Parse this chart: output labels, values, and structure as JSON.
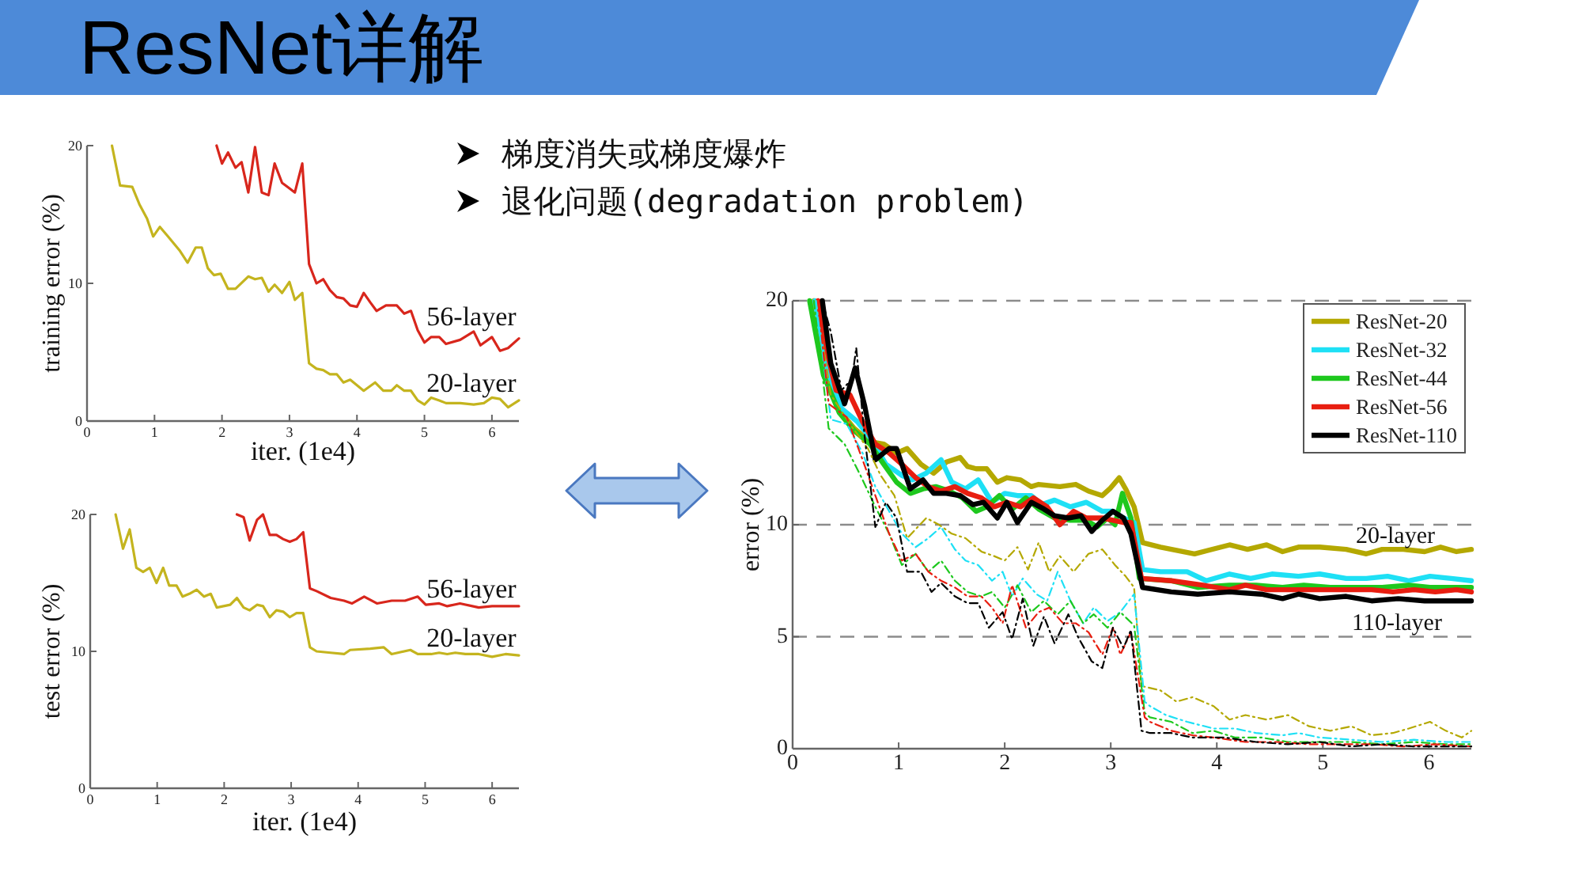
{
  "chart_data": [
    {
      "type": "other",
      "title": "ResNet详解",
      "annotations": [
        "梯度消失或梯度爆炸",
        "退化问题(degradation problem)"
      ]
    },
    {
      "type": "line",
      "xlabel": "iter. (1e4)",
      "ylabel": "training error (%)",
      "xlim": [
        0,
        6.4
      ],
      "ylim": [
        0,
        20
      ],
      "xticks": [
        0,
        1,
        2,
        3,
        4,
        5,
        6
      ],
      "yticks": [
        0,
        10,
        20
      ],
      "series": [
        {
          "color": "#c4b41e",
          "x": [
            0.37,
            0.49,
            0.67,
            0.78,
            0.89,
            0.98,
            1.08,
            1.2,
            1.37,
            1.49,
            1.61,
            1.7,
            1.79,
            1.88,
            1.98,
            2.09,
            2.2,
            2.39,
            2.49,
            2.59,
            2.69,
            2.78,
            2.89,
            3.0,
            3.08,
            3.19,
            3.29,
            3.4,
            3.5,
            3.6,
            3.7,
            3.8,
            3.9,
            4.0,
            4.1,
            4.27,
            4.39,
            4.51,
            4.59,
            4.7,
            4.8,
            4.9,
            5.0,
            5.1,
            5.22,
            5.32,
            5.53,
            5.73,
            5.88,
            6.0,
            6.12,
            6.24,
            6.4
          ],
          "values": [
            20,
            17.1,
            17.0,
            15.7,
            14.7,
            13.4,
            14.1,
            13.4,
            12.4,
            11.5,
            12.6,
            12.6,
            11.1,
            10.6,
            10.7,
            9.6,
            9.6,
            10.5,
            10.3,
            10.4,
            9.4,
            9.9,
            9.3,
            10.1,
            8.8,
            9.3,
            4.2,
            3.8,
            3.7,
            3.4,
            3.4,
            2.8,
            3.0,
            2.6,
            2.2,
            2.8,
            2.2,
            2.2,
            2.6,
            2.2,
            2.2,
            1.5,
            1.2,
            1.7,
            1.5,
            1.3,
            1.3,
            1.2,
            1.3,
            1.7,
            1.6,
            1.0,
            1.5
          ]
        },
        {
          "color": "#d8261c",
          "x": [
            1.92,
            2.0,
            2.09,
            2.2,
            2.29,
            2.39,
            2.49,
            2.59,
            2.69,
            2.78,
            2.89,
            3.0,
            3.08,
            3.19,
            3.29,
            3.4,
            3.5,
            3.6,
            3.7,
            3.8,
            3.9,
            4.0,
            4.1,
            4.2,
            4.29,
            4.43,
            4.59,
            4.7,
            4.8,
            4.9,
            5.0,
            5.1,
            5.22,
            5.32,
            5.53,
            5.73,
            5.83,
            6.0,
            6.12,
            6.24,
            6.4
          ],
          "values": [
            20,
            18.7,
            19.5,
            18.4,
            18.8,
            16.6,
            19.9,
            16.6,
            16.4,
            18.7,
            17.3,
            16.9,
            16.6,
            18.7,
            11.4,
            10.0,
            10.3,
            9.5,
            9.0,
            8.9,
            8.4,
            8.3,
            9.3,
            8.6,
            8.0,
            8.4,
            8.4,
            7.8,
            8.0,
            6.6,
            5.7,
            6.1,
            6.1,
            5.6,
            5.9,
            6.5,
            5.5,
            6.1,
            5.1,
            5.3,
            6.0
          ]
        }
      ],
      "annotations": [
        "56-layer",
        "20-layer"
      ]
    },
    {
      "type": "line",
      "xlabel": "iter. (1e4)",
      "ylabel": "test error (%)",
      "xlim": [
        0,
        6.4
      ],
      "ylim": [
        0,
        20
      ],
      "xticks": [
        0,
        1,
        2,
        3,
        4,
        5,
        6
      ],
      "yticks": [
        0,
        10,
        20
      ],
      "series": [
        {
          "color": "#c4b41e",
          "x": [
            0.38,
            0.49,
            0.59,
            0.69,
            0.79,
            0.89,
            0.99,
            1.09,
            1.18,
            1.29,
            1.38,
            1.48,
            1.59,
            1.7,
            1.8,
            1.89,
            1.99,
            2.09,
            2.19,
            2.29,
            2.38,
            2.49,
            2.58,
            2.68,
            2.78,
            2.88,
            2.98,
            3.08,
            3.18,
            3.28,
            3.38,
            3.59,
            3.79,
            3.88,
            4.18,
            4.38,
            4.5,
            4.78,
            4.89,
            5.09,
            5.21,
            5.33,
            5.45,
            5.6,
            5.8,
            6.0,
            6.2,
            6.4
          ],
          "values": [
            20,
            17.5,
            18.9,
            16.1,
            15.8,
            16.1,
            15.0,
            16.1,
            14.8,
            14.8,
            14.0,
            14.2,
            14.5,
            14.0,
            14.2,
            13.2,
            13.3,
            13.4,
            13.9,
            13.2,
            13.0,
            13.4,
            13.3,
            12.5,
            13.0,
            12.9,
            12.5,
            12.8,
            12.8,
            10.3,
            10.0,
            9.9,
            9.8,
            10.1,
            10.2,
            10.3,
            9.8,
            10.1,
            9.8,
            9.8,
            9.9,
            9.8,
            9.9,
            9.8,
            9.8,
            9.6,
            9.8,
            9.7
          ]
        },
        {
          "color": "#d8261c",
          "x": [
            2.19,
            2.29,
            2.38,
            2.49,
            2.58,
            2.68,
            2.78,
            2.88,
            2.98,
            3.08,
            3.18,
            3.28,
            3.38,
            3.59,
            3.79,
            3.91,
            4.09,
            4.28,
            4.5,
            4.7,
            4.89,
            5.01,
            5.21,
            5.33,
            5.52,
            5.8,
            6.0,
            6.4
          ],
          "values": [
            20,
            19.8,
            18.1,
            19.6,
            20,
            18.5,
            18.5,
            18.2,
            18.0,
            18.2,
            18.7,
            14.6,
            14.4,
            13.9,
            13.7,
            13.5,
            14.0,
            13.5,
            13.7,
            13.7,
            14.0,
            13.4,
            13.5,
            13.3,
            13.5,
            13.2,
            13.3,
            13.3
          ]
        }
      ],
      "annotations": [
        "56-layer",
        "20-layer"
      ]
    },
    {
      "type": "line",
      "ylabel": "error (%)",
      "xlim": [
        0,
        6.4
      ],
      "ylim": [
        0,
        20
      ],
      "xticks": [
        0,
        1,
        2,
        3,
        4,
        5,
        6
      ],
      "yticks": [
        0,
        5,
        10,
        20
      ],
      "grid": "y",
      "legend": "top right",
      "series": [
        {
          "name": "ResNet-20",
          "color": "#b4a800",
          "line_style": "solid",
          "x": [
            0.2,
            0.34,
            0.46,
            0.58,
            0.73,
            0.86,
            0.98,
            1.08,
            1.21,
            1.33,
            1.45,
            1.58,
            1.65,
            1.73,
            1.83,
            1.93,
            2.02,
            2.15,
            2.25,
            2.32,
            2.52,
            2.67,
            2.79,
            2.92,
            2.99,
            3.08,
            3.14,
            3.22,
            3.3,
            3.47,
            3.79,
            4.12,
            4.29,
            4.47,
            4.62,
            4.77,
            4.97,
            5.22,
            5.41,
            5.56,
            5.76,
            5.96,
            6.11,
            6.26,
            6.4
          ],
          "values": [
            20,
            16.2,
            15.0,
            14.3,
            13.7,
            13.6,
            13.2,
            13.4,
            12.7,
            12.3,
            12.8,
            13.0,
            12.6,
            12.5,
            12.5,
            11.9,
            12.1,
            12.0,
            11.7,
            11.8,
            11.7,
            11.8,
            11.5,
            11.3,
            11.6,
            12.1,
            11.6,
            10.8,
            9.2,
            9.0,
            8.7,
            9.1,
            8.9,
            9.1,
            8.8,
            9.0,
            9.0,
            8.9,
            8.7,
            8.9,
            8.9,
            8.8,
            9.0,
            8.8,
            8.9
          ]
        },
        {
          "name": "ResNet-32",
          "color": "#1ee0f5",
          "line_style": "solid",
          "x": [
            0.21,
            0.34,
            0.46,
            0.61,
            0.73,
            0.88,
            1.03,
            1.13,
            1.26,
            1.4,
            1.5,
            1.63,
            1.75,
            1.88,
            2.0,
            2.12,
            2.25,
            2.35,
            2.47,
            2.62,
            2.77,
            2.92,
            3.02,
            3.12,
            3.22,
            3.3,
            3.47,
            3.72,
            3.9,
            4.12,
            4.32,
            4.52,
            4.77,
            4.97,
            5.22,
            5.41,
            5.61,
            5.81,
            6.01,
            6.21,
            6.4
          ],
          "values": [
            20,
            16.7,
            15.2,
            14.6,
            13.9,
            12.7,
            12.2,
            12.0,
            12.3,
            12.9,
            11.9,
            11.6,
            12.0,
            11.0,
            11.4,
            11.3,
            11.3,
            10.9,
            11.1,
            10.8,
            11.0,
            10.6,
            10.6,
            10.3,
            10.1,
            8.0,
            7.9,
            7.9,
            7.5,
            7.8,
            7.6,
            7.8,
            7.7,
            7.8,
            7.6,
            7.6,
            7.7,
            7.5,
            7.7,
            7.6,
            7.5
          ]
        },
        {
          "name": "ResNet-44",
          "color": "#1ec81e",
          "line_style": "solid",
          "x": [
            0.16,
            0.29,
            0.44,
            0.58,
            0.73,
            0.86,
            0.98,
            1.11,
            1.23,
            1.35,
            1.48,
            1.6,
            1.73,
            1.83,
            1.95,
            2.07,
            2.2,
            2.32,
            2.47,
            2.62,
            2.77,
            2.87,
            2.97,
            3.04,
            3.11,
            3.19,
            3.27,
            3.57,
            3.82,
            4.12,
            4.37,
            4.62,
            4.82,
            5.07,
            5.32,
            5.56,
            5.81,
            6.01,
            6.21,
            6.4
          ],
          "values": [
            20,
            16.7,
            15.0,
            14.2,
            13.6,
            12.7,
            11.9,
            11.4,
            11.6,
            11.7,
            11.5,
            11.2,
            10.6,
            10.8,
            11.3,
            10.7,
            11.2,
            10.7,
            10.3,
            10.2,
            10.2,
            9.9,
            10.3,
            10.0,
            11.4,
            10.3,
            7.6,
            7.5,
            7.2,
            7.3,
            7.3,
            7.2,
            7.3,
            7.2,
            7.2,
            7.2,
            7.3,
            7.2,
            7.2,
            7.2
          ]
        },
        {
          "name": "ResNet-56",
          "color": "#e81e10",
          "line_style": "solid",
          "x": [
            0.24,
            0.34,
            0.41,
            0.54,
            0.66,
            0.78,
            0.91,
            1.03,
            1.16,
            1.28,
            1.4,
            1.53,
            1.65,
            1.78,
            1.9,
            2.02,
            2.15,
            2.27,
            2.4,
            2.52,
            2.65,
            2.77,
            2.92,
            3.02,
            3.12,
            3.19,
            3.29,
            3.57,
            3.87,
            4.12,
            4.27,
            4.47,
            4.72,
            4.97,
            5.22,
            5.46,
            5.66,
            5.86,
            6.06,
            6.26,
            6.4
          ],
          "values": [
            20,
            17.4,
            16.0,
            15.8,
            14.6,
            13.6,
            13.2,
            12.7,
            12.1,
            11.7,
            11.5,
            11.7,
            11.4,
            11.2,
            10.8,
            11.0,
            10.8,
            11.2,
            10.8,
            10.0,
            10.6,
            10.3,
            10.3,
            10.2,
            10.1,
            10.1,
            7.6,
            7.5,
            7.3,
            7.1,
            7.3,
            7.1,
            7.1,
            7.1,
            7.1,
            7.1,
            7.0,
            7.1,
            7.0,
            7.1,
            7.0
          ]
        },
        {
          "name": "ResNet-110",
          "color": "#000000",
          "line_style": "solid",
          "x": [
            0.28,
            0.36,
            0.49,
            0.59,
            0.68,
            0.78,
            0.91,
            0.98,
            1.11,
            1.23,
            1.33,
            1.45,
            1.58,
            1.7,
            1.8,
            1.93,
            2.02,
            2.12,
            2.25,
            2.37,
            2.47,
            2.6,
            2.72,
            2.82,
            2.92,
            3.02,
            3.12,
            3.19,
            3.3,
            3.57,
            3.82,
            4.12,
            4.42,
            4.62,
            4.77,
            4.97,
            5.22,
            5.46,
            5.71,
            5.96,
            6.21,
            6.4
          ],
          "values": [
            20,
            17.2,
            15.4,
            17.0,
            15.3,
            12.9,
            13.4,
            13.4,
            11.6,
            12.0,
            11.4,
            11.4,
            11.3,
            10.9,
            11.0,
            10.3,
            11.0,
            10.1,
            11.0,
            10.7,
            10.4,
            10.3,
            10.4,
            9.7,
            10.2,
            10.6,
            10.3,
            9.6,
            7.2,
            7.0,
            6.9,
            7.0,
            6.9,
            6.7,
            6.9,
            6.7,
            6.8,
            6.6,
            6.7,
            6.6,
            6.6,
            6.6
          ]
        },
        {
          "color": "#b4a800",
          "line_style": "dashed",
          "x": [
            0.22,
            0.36,
            0.54,
            0.71,
            0.83,
            0.96,
            1.08,
            1.26,
            1.38,
            1.5,
            1.63,
            1.78,
            1.9,
            2.0,
            2.12,
            2.22,
            2.32,
            2.42,
            2.52,
            2.65,
            2.79,
            2.92,
            3.04,
            3.14,
            3.22,
            3.29,
            3.47,
            3.62,
            3.77,
            3.97,
            4.12,
            4.27,
            4.47,
            4.67,
            4.87,
            5.07,
            5.27,
            5.46,
            5.66,
            5.81,
            6.01,
            6.16,
            6.31,
            6.4
          ],
          "values": [
            20,
            15.8,
            14.5,
            13.4,
            12.2,
            11.3,
            9.4,
            10.3,
            10.0,
            9.6,
            9.4,
            8.8,
            8.6,
            8.4,
            9.0,
            8.0,
            9.2,
            7.9,
            8.6,
            7.9,
            8.7,
            8.9,
            8.2,
            7.7,
            7.2,
            2.8,
            2.6,
            2.1,
            2.3,
            1.9,
            1.3,
            1.5,
            1.3,
            1.5,
            1.0,
            0.8,
            1.0,
            0.6,
            0.7,
            0.9,
            1.2,
            0.8,
            0.5,
            0.8
          ]
        },
        {
          "color": "#1ee0f5",
          "line_style": "dashed",
          "x": [
            0.22,
            0.36,
            0.51,
            0.66,
            0.78,
            0.91,
            1.03,
            1.16,
            1.28,
            1.4,
            1.53,
            1.63,
            1.75,
            1.88,
            1.98,
            2.07,
            2.17,
            2.3,
            2.4,
            2.5,
            2.62,
            2.74,
            2.84,
            2.97,
            3.09,
            3.22,
            3.32,
            3.37,
            3.52,
            3.72,
            3.97,
            4.17,
            4.37,
            4.62,
            4.77,
            4.97,
            5.27,
            5.56,
            5.86,
            6.16,
            6.4
          ],
          "values": [
            20,
            14.7,
            14.5,
            13.2,
            11.7,
            10.6,
            9.6,
            9.0,
            9.4,
            9.9,
            8.9,
            8.4,
            8.2,
            7.5,
            7.9,
            6.8,
            7.6,
            6.9,
            6.6,
            7.9,
            6.6,
            5.6,
            6.3,
            5.7,
            6.1,
            6.9,
            2.1,
            1.9,
            1.5,
            1.2,
            0.9,
            0.9,
            0.7,
            0.6,
            0.7,
            0.5,
            0.4,
            0.3,
            0.4,
            0.3,
            0.3
          ]
        },
        {
          "color": "#1ec81e",
          "line_style": "dashed",
          "x": [
            0.2,
            0.34,
            0.49,
            0.64,
            0.78,
            0.91,
            1.03,
            1.16,
            1.28,
            1.4,
            1.53,
            1.65,
            1.78,
            1.88,
            2.0,
            2.12,
            2.25,
            2.37,
            2.5,
            2.62,
            2.74,
            2.84,
            2.97,
            3.09,
            3.22,
            3.32,
            3.37,
            3.57,
            3.77,
            3.97,
            4.17,
            4.42,
            4.67,
            4.97,
            5.27,
            5.56,
            5.86,
            6.16,
            6.4
          ],
          "values": [
            20,
            14.3,
            13.6,
            12.2,
            10.8,
            9.6,
            8.2,
            8.7,
            7.9,
            8.4,
            7.5,
            7.0,
            6.8,
            7.0,
            6.3,
            7.3,
            6.1,
            6.6,
            6.0,
            6.6,
            5.6,
            6.0,
            5.4,
            6.1,
            5.5,
            1.6,
            1.4,
            1.2,
            0.7,
            0.8,
            0.5,
            0.5,
            0.3,
            0.3,
            0.3,
            0.2,
            0.3,
            0.2,
            0.2
          ]
        },
        {
          "color": "#e81e10",
          "line_style": "dashed",
          "x": [
            0.24,
            0.34,
            0.51,
            0.66,
            0.78,
            0.91,
            1.03,
            1.16,
            1.28,
            1.4,
            1.53,
            1.65,
            1.78,
            1.88,
            1.98,
            2.07,
            2.2,
            2.32,
            2.42,
            2.55,
            2.67,
            2.79,
            2.92,
            3.02,
            3.09,
            3.19,
            3.32,
            3.37,
            3.57,
            3.77,
            3.97,
            4.27,
            4.57,
            4.87,
            5.17,
            5.46,
            5.76,
            6.06,
            6.4
          ],
          "values": [
            20,
            15.4,
            14.8,
            12.9,
            11.3,
            9.6,
            8.4,
            8.7,
            7.9,
            7.5,
            7.2,
            6.8,
            6.8,
            6.3,
            5.6,
            7.3,
            5.4,
            6.1,
            6.3,
            5.6,
            5.6,
            5.2,
            4.2,
            5.4,
            4.2,
            5.2,
            1.4,
            1.2,
            0.8,
            0.6,
            0.5,
            0.3,
            0.3,
            0.2,
            0.2,
            0.2,
            0.1,
            0.2,
            0.1
          ]
        },
        {
          "color": "#000000",
          "line_style": "dashed",
          "x": [
            0.28,
            0.36,
            0.46,
            0.56,
            0.6,
            0.68,
            0.78,
            0.88,
            0.98,
            1.08,
            1.21,
            1.31,
            1.4,
            1.53,
            1.65,
            1.75,
            1.85,
            1.98,
            2.07,
            2.17,
            2.27,
            2.37,
            2.47,
            2.6,
            2.69,
            2.82,
            2.92,
            3.02,
            3.12,
            3.19,
            3.29,
            3.37,
            3.57,
            3.77,
            4.07,
            4.37,
            4.67,
            4.97,
            5.27,
            5.56,
            5.86,
            6.16,
            6.4
          ],
          "values": [
            20,
            18.6,
            16.0,
            16.5,
            17.9,
            13.9,
            9.9,
            11.0,
            10.3,
            7.9,
            7.9,
            7.0,
            7.4,
            6.8,
            6.5,
            6.5,
            5.4,
            6.1,
            4.9,
            6.7,
            4.6,
            5.9,
            4.7,
            6.0,
            5.0,
            3.9,
            3.6,
            5.4,
            4.5,
            5.3,
            0.8,
            0.7,
            0.7,
            0.5,
            0.5,
            0.3,
            0.2,
            0.3,
            0.1,
            0.2,
            0.1,
            0.1,
            0.1
          ]
        }
      ],
      "annotations": [
        "20-layer",
        "110-layer"
      ]
    }
  ]
}
